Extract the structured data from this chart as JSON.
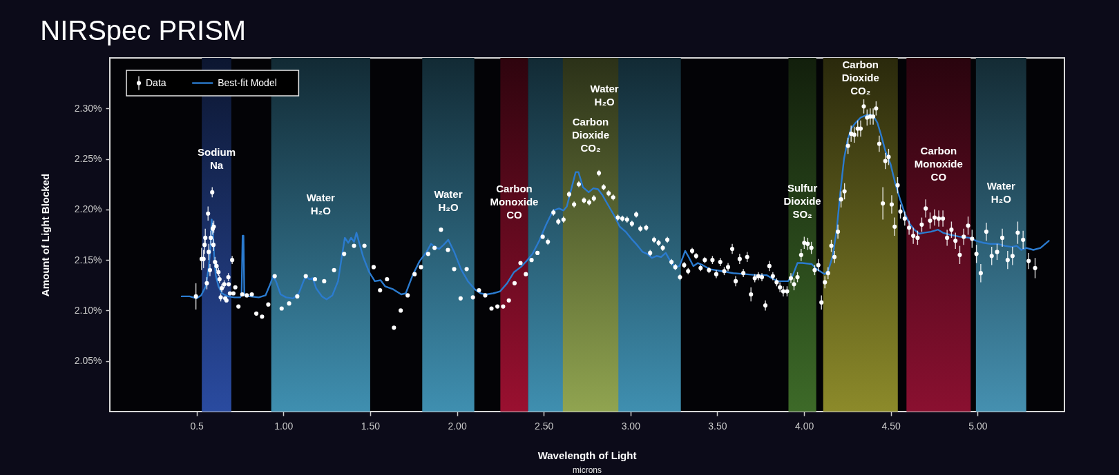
{
  "chart_data": {
    "type": "scatter",
    "title": "NIRSpec PRISM",
    "xlabel": "Wavelength of Light\nmicrons",
    "ylabel": "Amount of Light Blocked",
    "xlim": [
      0,
      5.5
    ],
    "ylim": [
      2.0,
      2.35
    ],
    "xticks": [
      0.5,
      {
        "value": 1.0,
        "label": "1.00"
      },
      {
        "value": 1.5,
        "label": "1.50"
      },
      {
        "value": 2.0,
        "label": "2.00"
      },
      {
        "value": 2.5,
        "label": "2.50"
      },
      {
        "value": 3.0,
        "label": "3.00"
      },
      {
        "value": 3.5,
        "label": "3.50"
      },
      {
        "value": 4.0,
        "label": "4.00"
      },
      {
        "value": 4.5,
        "label": "4.50"
      },
      {
        "value": 5.0,
        "label": "5.00"
      }
    ],
    "yticks": [
      {
        "value": 2.05,
        "label": "2.05%"
      },
      {
        "value": 2.1,
        "label": "2.10%"
      },
      {
        "value": 2.15,
        "label": "2.15%"
      },
      {
        "value": 2.2,
        "label": "2.20%"
      },
      {
        "value": 2.25,
        "label": "2.25%"
      },
      {
        "value": 2.3,
        "label": "2.30%"
      }
    ],
    "legend": "top left",
    "marker": "circle",
    "bands": [
      {
        "axis": "x",
        "from": 0.53,
        "to": 0.7,
        "color": "#2a4ba0",
        "label": "Sodium Na"
      },
      {
        "axis": "x",
        "from": 0.93,
        "to": 1.5,
        "color": "#3f8fb0",
        "label": "Water H₂O"
      },
      {
        "axis": "x",
        "from": 1.8,
        "to": 2.1,
        "color": "#3f8fb0",
        "label": "Water H₂O"
      },
      {
        "axis": "x",
        "from": 2.25,
        "to": 2.41,
        "color": "#9a1030",
        "label": "Carbon Monoxide CO"
      },
      {
        "axis": "x",
        "from": 2.41,
        "to": 3.29,
        "color": "#3f8fb0",
        "label": "Water H₂O"
      },
      {
        "axis": "x",
        "from": 2.61,
        "to": 2.93,
        "color": "#90a450",
        "label": "Carbon Dioxide CO₂"
      },
      {
        "axis": "x",
        "from": 3.91,
        "to": 4.07,
        "color": "#3d6a28",
        "label": "Sulfur Dioxide SO₂"
      },
      {
        "axis": "x",
        "from": 4.11,
        "to": 4.54,
        "color": "#8c8a2a",
        "label": "Carbon Dioxide CO₂"
      },
      {
        "axis": "x",
        "from": 4.59,
        "to": 4.96,
        "color": "#8a1030",
        "label": "Carbon Monoxide CO"
      },
      {
        "axis": "x",
        "from": 4.99,
        "to": 5.28,
        "color": "#4590b0",
        "label": "Water H₂O"
      }
    ],
    "series": [
      {
        "name": "Data",
        "color": "#ffffff",
        "x": [
          0.496,
          0.529,
          0.54,
          0.546,
          0.55,
          0.559,
          0.566,
          0.57,
          0.577,
          0.582,
          0.59,
          0.593,
          0.597,
          0.599,
          0.606,
          0.615,
          0.626,
          0.632,
          0.639,
          0.645,
          0.659,
          0.665,
          0.672,
          0.683,
          0.685,
          0.692,
          0.705,
          0.712,
          0.723,
          0.741,
          0.763,
          0.789,
          0.818,
          0.844,
          0.877,
          0.913,
          0.95,
          0.99,
          1.033,
          1.08,
          1.129,
          1.182,
          1.235,
          1.292,
          1.35,
          1.407,
          1.467,
          1.52,
          1.557,
          1.597,
          1.637,
          1.676,
          1.716,
          1.756,
          1.793,
          1.834,
          1.871,
          1.908,
          1.948,
          1.984,
          2.021,
          2.056,
          2.092,
          2.127,
          2.163,
          2.199,
          2.233,
          2.266,
          2.299,
          2.332,
          2.366,
          2.397,
          2.43,
          2.464,
          2.494,
          2.524,
          2.556,
          2.584,
          2.614,
          2.646,
          2.675,
          2.702,
          2.732,
          2.762,
          2.789,
          2.818,
          2.845,
          2.874,
          2.9,
          2.927,
          2.953,
          2.98,
          3.008,
          3.033,
          3.057,
          3.09,
          3.113,
          3.136,
          3.162,
          3.186,
          3.212,
          3.236,
          3.258,
          3.285,
          3.309,
          3.332,
          3.355,
          3.378,
          3.404,
          3.428,
          3.452,
          3.472,
          3.494,
          3.517,
          3.54,
          3.562,
          3.586,
          3.606,
          3.629,
          3.65,
          3.672,
          3.694,
          3.716,
          3.736,
          3.757,
          3.777,
          3.8,
          3.82,
          3.842,
          3.861,
          3.88,
          3.902,
          3.924,
          3.942,
          3.962,
          3.983,
          4.001,
          4.021,
          4.042,
          4.061,
          4.082,
          4.1,
          4.12,
          4.138,
          4.157,
          4.175,
          4.195,
          4.213,
          4.233,
          4.253,
          4.271,
          4.289,
          4.309,
          4.326,
          4.344,
          4.363,
          4.381,
          4.398,
          4.415,
          4.433,
          4.454,
          4.468,
          4.487,
          4.505,
          4.522,
          4.539,
          4.555,
          4.58,
          4.605,
          4.629,
          4.654,
          4.678,
          4.701,
          4.726,
          4.752,
          4.776,
          4.8,
          4.824,
          4.849,
          4.872,
          4.897,
          4.92,
          4.945,
          4.968,
          4.993,
          5.018,
          5.05,
          5.081,
          5.112,
          5.142,
          5.173,
          5.201,
          5.231,
          5.262,
          5.294,
          5.331
        ],
        "values": [
          2.114,
          2.151,
          2.151,
          2.165,
          2.172,
          2.127,
          2.196,
          2.158,
          2.14,
          2.172,
          2.217,
          2.181,
          2.165,
          2.183,
          2.148,
          2.144,
          2.138,
          2.131,
          2.113,
          2.122,
          2.126,
          2.112,
          2.11,
          2.133,
          2.126,
          2.117,
          2.15,
          2.117,
          2.123,
          2.104,
          2.116,
          2.115,
          2.116,
          2.097,
          2.094,
          2.106,
          2.134,
          2.102,
          2.107,
          2.114,
          2.134,
          2.131,
          2.129,
          2.14,
          2.156,
          2.164,
          2.164,
          2.143,
          2.12,
          2.131,
          2.083,
          2.1,
          2.115,
          2.136,
          2.143,
          2.156,
          2.162,
          2.18,
          2.16,
          2.141,
          2.112,
          2.141,
          2.113,
          2.12,
          2.115,
          2.102,
          2.104,
          2.104,
          2.11,
          2.127,
          2.147,
          2.136,
          2.15,
          2.157,
          2.173,
          2.168,
          2.197,
          2.188,
          2.19,
          2.215,
          2.205,
          2.225,
          2.209,
          2.207,
          2.211,
          2.236,
          2.222,
          2.216,
          2.212,
          2.192,
          2.191,
          2.19,
          2.186,
          2.195,
          2.181,
          2.182,
          2.157,
          2.17,
          2.167,
          2.162,
          2.17,
          2.148,
          2.143,
          2.133,
          2.145,
          2.139,
          2.159,
          2.154,
          2.142,
          2.15,
          2.14,
          2.15,
          2.136,
          2.148,
          2.139,
          2.143,
          2.161,
          2.129,
          2.151,
          2.137,
          2.153,
          2.116,
          2.132,
          2.134,
          2.133,
          2.105,
          2.144,
          2.134,
          2.128,
          2.123,
          2.119,
          2.119,
          2.132,
          2.126,
          2.133,
          2.155,
          2.167,
          2.166,
          2.162,
          2.14,
          2.145,
          2.108,
          2.128,
          2.137,
          2.164,
          2.153,
          2.178,
          2.21,
          2.218,
          2.263,
          2.275,
          2.274,
          2.28,
          2.28,
          2.302,
          2.291,
          2.292,
          2.292,
          2.3,
          2.265,
          2.206,
          2.248,
          2.252,
          2.205,
          2.183,
          2.224,
          2.198,
          2.191,
          2.182,
          2.174,
          2.172,
          2.185,
          2.201,
          2.189,
          2.192,
          2.191,
          2.191,
          2.172,
          2.18,
          2.169,
          2.155,
          2.173,
          2.184,
          2.171,
          2.156,
          2.137,
          2.178,
          2.154,
          2.158,
          2.172,
          2.15,
          2.154,
          2.177,
          2.17,
          2.149,
          2.142
        ],
        "errors": [
          0.013,
          0.011,
          0.009,
          0.009,
          0.009,
          0.006,
          0.007,
          0.008,
          0.006,
          0.007,
          0.005,
          0.006,
          0.006,
          0.006,
          0.005,
          0.005,
          0.004,
          0.004,
          0.004,
          0.004,
          0.004,
          null,
          null,
          0.004,
          null,
          null,
          0.004,
          null,
          null,
          null,
          null,
          null,
          null,
          null,
          null,
          null,
          null,
          null,
          null,
          null,
          null,
          null,
          null,
          null,
          null,
          null,
          null,
          null,
          null,
          null,
          null,
          null,
          null,
          null,
          null,
          null,
          null,
          null,
          null,
          null,
          null,
          null,
          null,
          null,
          null,
          null,
          null,
          null,
          null,
          null,
          null,
          null,
          null,
          null,
          null,
          0.003,
          0.003,
          0.003,
          0.003,
          0.003,
          0.003,
          0.003,
          0.003,
          0.003,
          0.003,
          0.003,
          0.003,
          0.003,
          0.003,
          0.003,
          0.003,
          0.003,
          0.003,
          0.003,
          0.003,
          0.003,
          0.003,
          0.003,
          0.003,
          0.003,
          0.003,
          0.003,
          0.003,
          0.003,
          0.003,
          0.003,
          0.003,
          0.003,
          0.003,
          0.003,
          0.003,
          0.004,
          0.004,
          0.004,
          0.004,
          0.004,
          0.005,
          0.005,
          0.005,
          0.004,
          0.005,
          0.007,
          0.004,
          0.004,
          0.004,
          0.005,
          0.005,
          0.004,
          0.004,
          0.005,
          0.005,
          0.005,
          0.005,
          0.006,
          0.005,
          0.006,
          0.006,
          0.006,
          0.006,
          0.005,
          0.006,
          0.007,
          0.006,
          0.006,
          0.006,
          0.006,
          0.007,
          0.008,
          0.008,
          0.008,
          0.008,
          0.008,
          0.008,
          0.008,
          0.007,
          0.008,
          0.008,
          0.008,
          0.007,
          0.008,
          0.016,
          0.008,
          0.008,
          0.009,
          0.009,
          0.008,
          0.007,
          0.007,
          0.007,
          0.008,
          0.007,
          0.007,
          0.009,
          0.008,
          0.008,
          0.008,
          0.008,
          0.008,
          0.008,
          0.008,
          0.009,
          0.008,
          0.009,
          0.009,
          0.009,
          0.009,
          0.009,
          0.009,
          0.008,
          0.009,
          0.009,
          0.009,
          0.011,
          0.009,
          0.008,
          0.01
        ]
      },
      {
        "name": "Best-fit Model",
        "type": "line",
        "marker": "none",
        "color": "#2b7bcf",
        "x": [
          0.414,
          0.46,
          0.5,
          0.526,
          0.553,
          0.569,
          0.579,
          0.587,
          0.594,
          0.601,
          0.61,
          0.626,
          0.646,
          0.679,
          0.718,
          0.751,
          0.759,
          0.765,
          0.77,
          0.775,
          0.805,
          0.858,
          0.897,
          0.924,
          0.94,
          0.957,
          0.984,
          1.016,
          1.056,
          1.089,
          1.116,
          1.129,
          1.149,
          1.169,
          1.189,
          1.222,
          1.249,
          1.282,
          1.315,
          1.341,
          1.354,
          1.374,
          1.39,
          1.407,
          1.421,
          1.44,
          1.46,
          1.494,
          1.527,
          1.56,
          1.586,
          1.633,
          1.679,
          1.705,
          1.745,
          1.785,
          1.825,
          1.851,
          1.871,
          1.897,
          1.923,
          1.95,
          1.984,
          2.023,
          2.063,
          2.103,
          2.136,
          2.169,
          2.209,
          2.249,
          2.289,
          2.329,
          2.368,
          2.401,
          2.435,
          2.474,
          2.514,
          2.554,
          2.588,
          2.614,
          2.633,
          2.66,
          2.684,
          2.7,
          2.726,
          2.759,
          2.786,
          2.813,
          2.839,
          2.872,
          2.906,
          2.938,
          2.972,
          3.005,
          3.037,
          3.07,
          3.097,
          3.123,
          3.15,
          3.176,
          3.203,
          3.229,
          3.256,
          3.282,
          3.302,
          3.315,
          3.335,
          3.362,
          3.388,
          3.415,
          3.455,
          3.524,
          3.592,
          3.661,
          3.729,
          3.784,
          3.825,
          3.852,
          3.907,
          3.935,
          3.962,
          3.989,
          4.044,
          4.072,
          4.119,
          4.14,
          4.165,
          4.188,
          4.209,
          4.23,
          4.25,
          4.271,
          4.298,
          4.326,
          4.353,
          4.381,
          4.401,
          4.422,
          4.443,
          4.47,
          4.498,
          4.525,
          4.553,
          4.58,
          4.608,
          4.635,
          4.663,
          4.69,
          4.731,
          4.772,
          4.8,
          4.841,
          4.896,
          4.951,
          4.992,
          5.033,
          5.074,
          5.115,
          5.156,
          5.197,
          5.225,
          5.252,
          5.28,
          5.321,
          5.362,
          5.41
        ],
        "values": [
          2.114,
          2.114,
          2.112,
          2.115,
          2.124,
          2.142,
          2.16,
          2.19,
          2.178,
          2.154,
          2.135,
          2.124,
          2.117,
          2.114,
          2.113,
          2.113,
          2.115,
          2.174,
          2.174,
          2.115,
          2.114,
          2.113,
          2.115,
          2.126,
          2.134,
          2.129,
          2.116,
          2.113,
          2.112,
          2.117,
          2.129,
          2.134,
          2.131,
          2.132,
          2.122,
          2.114,
          2.111,
          2.115,
          2.129,
          2.158,
          2.172,
          2.167,
          2.172,
          2.168,
          2.177,
          2.165,
          2.153,
          2.138,
          2.129,
          2.13,
          2.124,
          2.121,
          2.116,
          2.117,
          2.135,
          2.149,
          2.158,
          2.166,
          2.163,
          2.161,
          2.165,
          2.17,
          2.158,
          2.141,
          2.129,
          2.121,
          2.117,
          2.116,
          2.117,
          2.119,
          2.127,
          2.138,
          2.143,
          2.149,
          2.156,
          2.169,
          2.185,
          2.199,
          2.201,
          2.199,
          2.203,
          2.221,
          2.237,
          2.237,
          2.222,
          2.217,
          2.221,
          2.22,
          2.214,
          2.204,
          2.194,
          2.183,
          2.178,
          2.171,
          2.165,
          2.158,
          2.156,
          2.152,
          2.154,
          2.153,
          2.157,
          2.149,
          2.143,
          2.144,
          2.153,
          2.159,
          2.153,
          2.144,
          2.147,
          2.145,
          2.141,
          2.139,
          2.137,
          2.136,
          2.135,
          2.135,
          2.131,
          2.129,
          2.129,
          2.135,
          2.147,
          2.147,
          2.146,
          2.141,
          2.136,
          2.14,
          2.154,
          2.18,
          2.217,
          2.25,
          2.268,
          2.28,
          2.286,
          2.291,
          2.293,
          2.294,
          2.292,
          2.286,
          2.274,
          2.257,
          2.245,
          2.226,
          2.21,
          2.196,
          2.186,
          2.18,
          2.176,
          2.177,
          2.178,
          2.18,
          2.177,
          2.175,
          2.173,
          2.172,
          2.169,
          2.167,
          2.166,
          2.166,
          2.164,
          2.163,
          2.164,
          2.16,
          2.162,
          2.16,
          2.162,
          2.169
        ]
      }
    ]
  }
}
